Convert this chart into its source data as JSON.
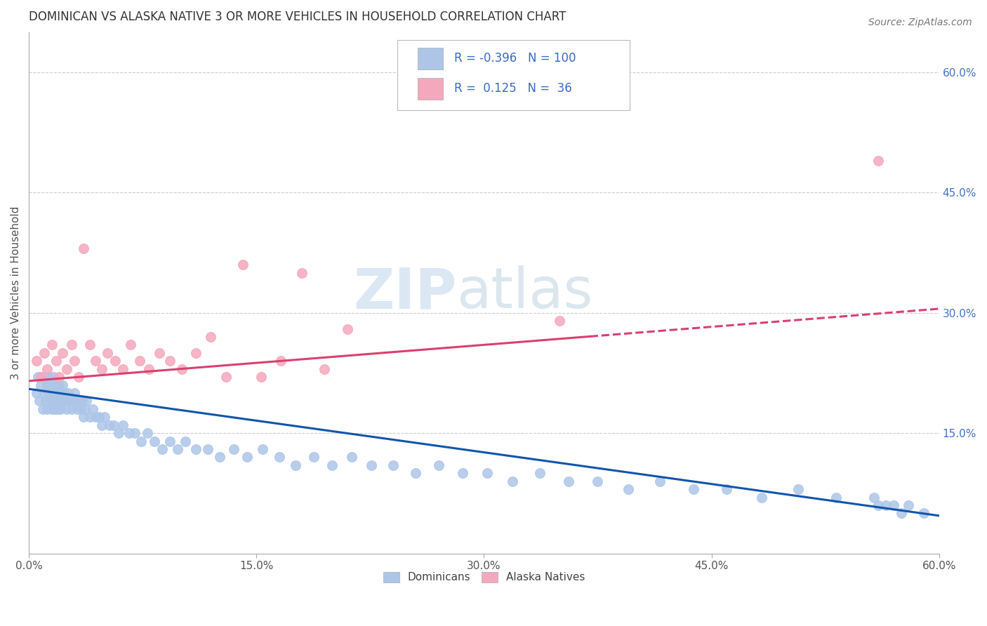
{
  "title": "DOMINICAN VS ALASKA NATIVE 3 OR MORE VEHICLES IN HOUSEHOLD CORRELATION CHART",
  "source": "Source: ZipAtlas.com",
  "ylabel": "3 or more Vehicles in Household",
  "xlim": [
    0.0,
    0.6
  ],
  "ylim": [
    0.0,
    0.65
  ],
  "xtick_labels": [
    "0.0%",
    "15.0%",
    "30.0%",
    "45.0%",
    "60.0%"
  ],
  "xtick_vals": [
    0.0,
    0.15,
    0.3,
    0.45,
    0.6
  ],
  "ytick_labels_right": [
    "60.0%",
    "45.0%",
    "30.0%",
    "15.0%"
  ],
  "ytick_vals_right": [
    0.6,
    0.45,
    0.3,
    0.15
  ],
  "dominicans_color": "#adc6e8",
  "alaska_color": "#f4a8be",
  "trend_dominicans_color": "#1155aa",
  "trend_alaska_color": "#d94070",
  "legend_label_1": "Dominicans",
  "legend_label_2": "Alaska Natives",
  "R_dominicans": -0.396,
  "N_dominicans": 100,
  "R_alaska": 0.125,
  "N_alaska": 36,
  "watermark_ZIP": "ZIP",
  "watermark_atlas": "atlas",
  "background_color": "#ffffff",
  "trend_dom_x0": 0.0,
  "trend_dom_y0": 0.205,
  "trend_dom_x1": 0.6,
  "trend_dom_y1": 0.047,
  "trend_alas_x0": 0.0,
  "trend_alas_y0": 0.215,
  "trend_alas_x1": 0.6,
  "trend_alas_y1": 0.305,
  "trend_alas_solid_end": 0.37,
  "dominicans_x": [
    0.005,
    0.006,
    0.007,
    0.008,
    0.009,
    0.01,
    0.01,
    0.011,
    0.012,
    0.012,
    0.013,
    0.013,
    0.014,
    0.014,
    0.015,
    0.015,
    0.016,
    0.016,
    0.017,
    0.017,
    0.018,
    0.018,
    0.019,
    0.019,
    0.02,
    0.02,
    0.021,
    0.021,
    0.022,
    0.022,
    0.023,
    0.024,
    0.025,
    0.026,
    0.027,
    0.028,
    0.029,
    0.03,
    0.031,
    0.032,
    0.033,
    0.034,
    0.035,
    0.036,
    0.037,
    0.038,
    0.04,
    0.042,
    0.044,
    0.046,
    0.048,
    0.05,
    0.053,
    0.056,
    0.059,
    0.062,
    0.066,
    0.07,
    0.074,
    0.078,
    0.083,
    0.088,
    0.093,
    0.098,
    0.103,
    0.11,
    0.118,
    0.126,
    0.135,
    0.144,
    0.154,
    0.165,
    0.176,
    0.188,
    0.2,
    0.213,
    0.226,
    0.24,
    0.255,
    0.27,
    0.286,
    0.302,
    0.319,
    0.337,
    0.356,
    0.375,
    0.395,
    0.416,
    0.438,
    0.46,
    0.483,
    0.507,
    0.532,
    0.557,
    0.56,
    0.565,
    0.57,
    0.575,
    0.58,
    0.59
  ],
  "dominicans_y": [
    0.2,
    0.22,
    0.19,
    0.21,
    0.18,
    0.2,
    0.22,
    0.19,
    0.21,
    0.18,
    0.2,
    0.22,
    0.19,
    0.21,
    0.18,
    0.2,
    0.22,
    0.19,
    0.2,
    0.18,
    0.21,
    0.19,
    0.2,
    0.18,
    0.19,
    0.21,
    0.2,
    0.18,
    0.19,
    0.21,
    0.2,
    0.19,
    0.18,
    0.2,
    0.19,
    0.18,
    0.19,
    0.2,
    0.19,
    0.18,
    0.19,
    0.18,
    0.19,
    0.17,
    0.18,
    0.19,
    0.17,
    0.18,
    0.17,
    0.17,
    0.16,
    0.17,
    0.16,
    0.16,
    0.15,
    0.16,
    0.15,
    0.15,
    0.14,
    0.15,
    0.14,
    0.13,
    0.14,
    0.13,
    0.14,
    0.13,
    0.13,
    0.12,
    0.13,
    0.12,
    0.13,
    0.12,
    0.11,
    0.12,
    0.11,
    0.12,
    0.11,
    0.11,
    0.1,
    0.11,
    0.1,
    0.1,
    0.09,
    0.1,
    0.09,
    0.09,
    0.08,
    0.09,
    0.08,
    0.08,
    0.07,
    0.08,
    0.07,
    0.07,
    0.06,
    0.06,
    0.06,
    0.05,
    0.06,
    0.05
  ],
  "alaska_x": [
    0.005,
    0.008,
    0.01,
    0.012,
    0.015,
    0.018,
    0.02,
    0.022,
    0.025,
    0.028,
    0.03,
    0.033,
    0.036,
    0.04,
    0.044,
    0.048,
    0.052,
    0.057,
    0.062,
    0.067,
    0.073,
    0.079,
    0.086,
    0.093,
    0.101,
    0.11,
    0.12,
    0.13,
    0.141,
    0.153,
    0.166,
    0.18,
    0.195,
    0.21,
    0.35,
    0.56
  ],
  "alaska_y": [
    0.24,
    0.22,
    0.25,
    0.23,
    0.26,
    0.24,
    0.22,
    0.25,
    0.23,
    0.26,
    0.24,
    0.22,
    0.38,
    0.26,
    0.24,
    0.23,
    0.25,
    0.24,
    0.23,
    0.26,
    0.24,
    0.23,
    0.25,
    0.24,
    0.23,
    0.25,
    0.27,
    0.22,
    0.36,
    0.22,
    0.24,
    0.35,
    0.23,
    0.28,
    0.29,
    0.49
  ]
}
